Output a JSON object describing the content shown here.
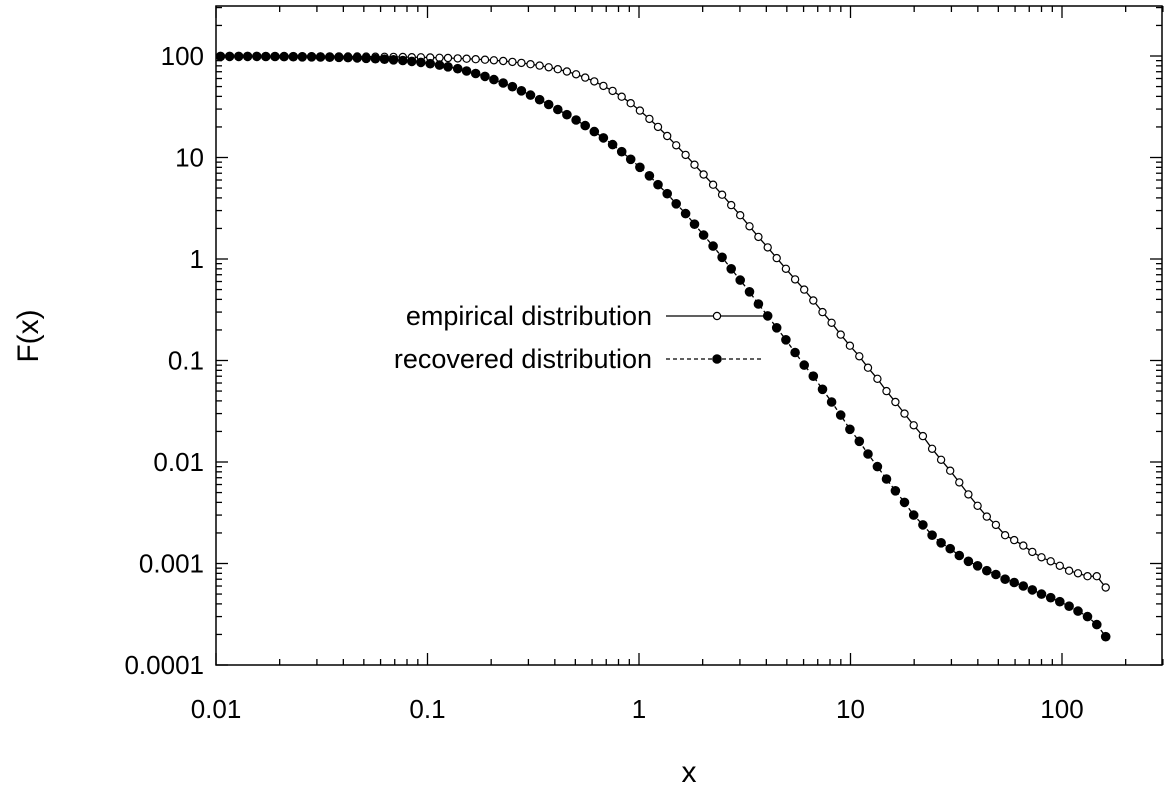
{
  "chart_data": {
    "type": "scatter",
    "title": "",
    "xlabel": "x",
    "ylabel": "F(x)",
    "xscale": "log",
    "yscale": "log",
    "xlim": [
      0.01,
      300
    ],
    "ylim": [
      0.0001,
      300
    ],
    "grid": false,
    "legend_position": "center-left",
    "x_ticks": [
      {
        "value": 0.01,
        "label": "0.01"
      },
      {
        "value": 0.1,
        "label": "0.1"
      },
      {
        "value": 1,
        "label": "1"
      },
      {
        "value": 10,
        "label": "10"
      },
      {
        "value": 100,
        "label": "100"
      }
    ],
    "y_ticks": [
      {
        "value": 0.0001,
        "label": "0.0001"
      },
      {
        "value": 0.001,
        "label": "0.001"
      },
      {
        "value": 0.01,
        "label": "0.01"
      },
      {
        "value": 0.1,
        "label": "0.1"
      },
      {
        "value": 1,
        "label": "1"
      },
      {
        "value": 10,
        "label": "10"
      },
      {
        "value": 100,
        "label": "100"
      }
    ],
    "series": [
      {
        "name": "empirical distribution",
        "marker": "open-circle",
        "line": "solid",
        "color": "#000000",
        "points": [
          [
            0.0105,
            99.6
          ],
          [
            0.0116,
            99.6
          ],
          [
            0.0128,
            99.6
          ],
          [
            0.0141,
            99.6
          ],
          [
            0.0156,
            99.6
          ],
          [
            0.0172,
            99.5
          ],
          [
            0.019,
            99.5
          ],
          [
            0.021,
            99.5
          ],
          [
            0.0232,
            99.4
          ],
          [
            0.0256,
            99.4
          ],
          [
            0.0283,
            99.3
          ],
          [
            0.0312,
            99.2
          ],
          [
            0.0345,
            99.1
          ],
          [
            0.0381,
            99.0
          ],
          [
            0.0421,
            98.9
          ],
          [
            0.0465,
            98.8
          ],
          [
            0.0513,
            98.6
          ],
          [
            0.0567,
            98.4
          ],
          [
            0.0626,
            98.2
          ],
          [
            0.0691,
            97.9
          ],
          [
            0.0764,
            97.7
          ],
          [
            0.0843,
            97.4
          ],
          [
            0.0931,
            97.0
          ],
          [
            0.103,
            96.6
          ],
          [
            0.114,
            96.1
          ],
          [
            0.125,
            95.5
          ],
          [
            0.139,
            94.8
          ],
          [
            0.153,
            94.0
          ],
          [
            0.169,
            93.1
          ],
          [
            0.187,
            92.0
          ],
          [
            0.206,
            90.7
          ],
          [
            0.228,
            89.2
          ],
          [
            0.252,
            87.5
          ],
          [
            0.278,
            85.5
          ],
          [
            0.307,
            83.1
          ],
          [
            0.339,
            80.4
          ],
          [
            0.374,
            77.4
          ],
          [
            0.413,
            74.1
          ],
          [
            0.456,
            70.3
          ],
          [
            0.504,
            66.0
          ],
          [
            0.557,
            61.3
          ],
          [
            0.615,
            56.2
          ],
          [
            0.679,
            50.8
          ],
          [
            0.75,
            45.3
          ],
          [
            0.828,
            39.7
          ],
          [
            0.914,
            34.3
          ],
          [
            1.01,
            29.0
          ],
          [
            1.12,
            24.0
          ],
          [
            1.23,
            20.0
          ],
          [
            1.36,
            16.3
          ],
          [
            1.5,
            13.2
          ],
          [
            1.66,
            10.6
          ],
          [
            1.83,
            8.5
          ],
          [
            2.02,
            6.8
          ],
          [
            2.24,
            5.4
          ],
          [
            2.47,
            4.3
          ],
          [
            2.73,
            3.4
          ],
          [
            3.01,
            2.7
          ],
          [
            3.33,
            2.1
          ],
          [
            3.67,
            1.65
          ],
          [
            4.06,
            1.3
          ],
          [
            4.48,
            1.02
          ],
          [
            4.95,
            0.8
          ],
          [
            5.47,
            0.63
          ],
          [
            6.04,
            0.5
          ],
          [
            6.67,
            0.39
          ],
          [
            7.37,
            0.3
          ],
          [
            8.14,
            0.235
          ],
          [
            8.99,
            0.18
          ],
          [
            9.93,
            0.14
          ],
          [
            11.0,
            0.11
          ],
          [
            12.1,
            0.085
          ],
          [
            13.4,
            0.066
          ],
          [
            14.8,
            0.05
          ],
          [
            16.3,
            0.039
          ],
          [
            18.0,
            0.03
          ],
          [
            19.9,
            0.023
          ],
          [
            22.0,
            0.018
          ],
          [
            24.3,
            0.0135
          ],
          [
            26.8,
            0.0105
          ],
          [
            29.6,
            0.0082
          ],
          [
            32.7,
            0.0063
          ],
          [
            36.1,
            0.0048
          ],
          [
            39.9,
            0.0037
          ],
          [
            44.1,
            0.0029
          ],
          [
            48.7,
            0.0024
          ],
          [
            53.8,
            0.0019
          ],
          [
            59.4,
            0.0017
          ],
          [
            65.6,
            0.0015
          ],
          [
            72.4,
            0.0013
          ],
          [
            80.0,
            0.00115
          ],
          [
            88.4,
            0.00105
          ],
          [
            97.6,
            0.00095
          ],
          [
            108,
            0.00085
          ],
          [
            119,
            0.0008
          ],
          [
            132,
            0.00075
          ],
          [
            146,
            0.00075
          ],
          [
            161,
            0.00058
          ]
        ]
      },
      {
        "name": "recovered distribution",
        "marker": "filled-circle",
        "line": "dashed",
        "color": "#000000",
        "points": [
          [
            0.0105,
            99.2
          ],
          [
            0.0116,
            99.2
          ],
          [
            0.0128,
            99.1
          ],
          [
            0.0141,
            99.1
          ],
          [
            0.0156,
            99.0
          ],
          [
            0.0172,
            98.9
          ],
          [
            0.019,
            98.8
          ],
          [
            0.021,
            98.7
          ],
          [
            0.0232,
            98.5
          ],
          [
            0.0256,
            98.3
          ],
          [
            0.0283,
            98.1
          ],
          [
            0.0312,
            97.8
          ],
          [
            0.0345,
            97.4
          ],
          [
            0.0381,
            97.0
          ],
          [
            0.0421,
            96.4
          ],
          [
            0.0465,
            95.8
          ],
          [
            0.0513,
            95.0
          ],
          [
            0.0567,
            94.1
          ],
          [
            0.0626,
            93.0
          ],
          [
            0.0691,
            91.7
          ],
          [
            0.0764,
            90.2
          ],
          [
            0.0843,
            88.4
          ],
          [
            0.0931,
            86.4
          ],
          [
            0.103,
            84.0
          ],
          [
            0.114,
            81.3
          ],
          [
            0.125,
            78.3
          ],
          [
            0.139,
            74.9
          ],
          [
            0.153,
            71.2
          ],
          [
            0.169,
            67.2
          ],
          [
            0.187,
            63.0
          ],
          [
            0.206,
            58.6
          ],
          [
            0.228,
            54.2
          ],
          [
            0.252,
            49.8
          ],
          [
            0.278,
            45.4
          ],
          [
            0.307,
            41.2
          ],
          [
            0.339,
            37.1
          ],
          [
            0.374,
            33.3
          ],
          [
            0.413,
            29.7
          ],
          [
            0.456,
            26.4
          ],
          [
            0.504,
            23.4
          ],
          [
            0.557,
            20.6
          ],
          [
            0.615,
            18.0
          ],
          [
            0.679,
            15.6
          ],
          [
            0.75,
            13.4
          ],
          [
            0.828,
            11.4
          ],
          [
            0.914,
            9.6
          ],
          [
            1.01,
            8.0
          ],
          [
            1.12,
            6.6
          ],
          [
            1.23,
            5.4
          ],
          [
            1.36,
            4.4
          ],
          [
            1.5,
            3.5
          ],
          [
            1.66,
            2.8
          ],
          [
            1.83,
            2.2
          ],
          [
            2.02,
            1.72
          ],
          [
            2.24,
            1.34
          ],
          [
            2.47,
            1.04
          ],
          [
            2.73,
            0.8
          ],
          [
            3.01,
            0.62
          ],
          [
            3.33,
            0.475
          ],
          [
            3.67,
            0.36
          ],
          [
            4.06,
            0.275
          ],
          [
            4.48,
            0.21
          ],
          [
            4.95,
            0.16
          ],
          [
            5.47,
            0.12
          ],
          [
            6.04,
            0.09
          ],
          [
            6.67,
            0.07
          ],
          [
            7.37,
            0.052
          ],
          [
            8.14,
            0.039
          ],
          [
            8.99,
            0.029
          ],
          [
            9.93,
            0.021
          ],
          [
            11.0,
            0.016
          ],
          [
            12.1,
            0.012
          ],
          [
            13.4,
            0.009
          ],
          [
            14.8,
            0.0068
          ],
          [
            16.3,
            0.0052
          ],
          [
            18.0,
            0.004
          ],
          [
            19.9,
            0.003
          ],
          [
            22.0,
            0.0024
          ],
          [
            24.3,
            0.0019
          ],
          [
            26.8,
            0.0016
          ],
          [
            29.6,
            0.0014
          ],
          [
            32.7,
            0.0012
          ],
          [
            36.1,
            0.00105
          ],
          [
            39.9,
            0.00095
          ],
          [
            44.1,
            0.00085
          ],
          [
            48.7,
            0.00078
          ],
          [
            53.8,
            0.0007
          ],
          [
            59.4,
            0.00065
          ],
          [
            65.6,
            0.0006
          ],
          [
            72.4,
            0.00055
          ],
          [
            80.0,
            0.0005
          ],
          [
            88.4,
            0.00046
          ],
          [
            97.6,
            0.00042
          ],
          [
            108,
            0.00038
          ],
          [
            119,
            0.00034
          ],
          [
            132,
            0.0003
          ],
          [
            146,
            0.00025
          ],
          [
            161,
            0.00019
          ]
        ]
      }
    ],
    "legend": [
      {
        "label": "empirical distribution",
        "marker": "open-circle",
        "line": "solid"
      },
      {
        "label": "recovered distribution",
        "marker": "filled-circle",
        "line": "dashed"
      }
    ]
  }
}
